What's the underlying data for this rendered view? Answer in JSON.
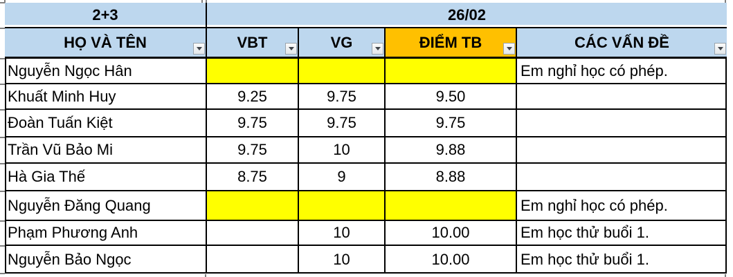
{
  "spreadsheet": {
    "merged_header": {
      "left": "2+3",
      "right": "26/02"
    },
    "columns": [
      {
        "id": "name",
        "label": "HỌ VÀ TÊN"
      },
      {
        "id": "vbt",
        "label": "VBT"
      },
      {
        "id": "vg",
        "label": "VG"
      },
      {
        "id": "tb",
        "label": "ĐIỂM TB"
      },
      {
        "id": "issues",
        "label": "CÁC VẤN ĐỀ"
      }
    ],
    "rows": [
      {
        "name": "Nguyễn Ngọc Hân",
        "vbt": "",
        "vg": "",
        "tb": "",
        "note": "Em nghỉ học có phép.",
        "highlight": true
      },
      {
        "name": "Khuất Minh Huy",
        "vbt": "9.25",
        "vg": "9.75",
        "tb": "9.50",
        "note": "",
        "highlight": false
      },
      {
        "name": "Đoàn Tuấn Kiệt",
        "vbt": "9.75",
        "vg": "9.75",
        "tb": "9.75",
        "note": "",
        "highlight": false
      },
      {
        "name": "Trần Vũ Bảo Mi",
        "vbt": "9.75",
        "vg": "10",
        "tb": "9.88",
        "note": "",
        "highlight": false
      },
      {
        "name": "Hà Gia Thế",
        "vbt": "8.75",
        "vg": "9",
        "tb": "8.88",
        "note": "",
        "highlight": false
      },
      {
        "name": "Nguyễn Đăng Quang",
        "vbt": "",
        "vg": "",
        "tb": "",
        "note": "Em nghỉ học có phép.",
        "highlight": true
      },
      {
        "name": "Phạm Phương Anh",
        "vbt": "",
        "vg": "10",
        "tb": "10.00",
        "note": "Em học thử buổi 1.",
        "highlight": false
      },
      {
        "name": "Nguyễn Bảo Ngọc",
        "vbt": "",
        "vg": "10",
        "tb": "10.00",
        "note": "Em học thử buổi 1.",
        "highlight": false
      }
    ],
    "colors": {
      "header_blue": "#BDD7EE",
      "tb_header_orange": "#FFC000",
      "absent_yellow": "#FFFF00",
      "grid_border": "#000000"
    }
  }
}
